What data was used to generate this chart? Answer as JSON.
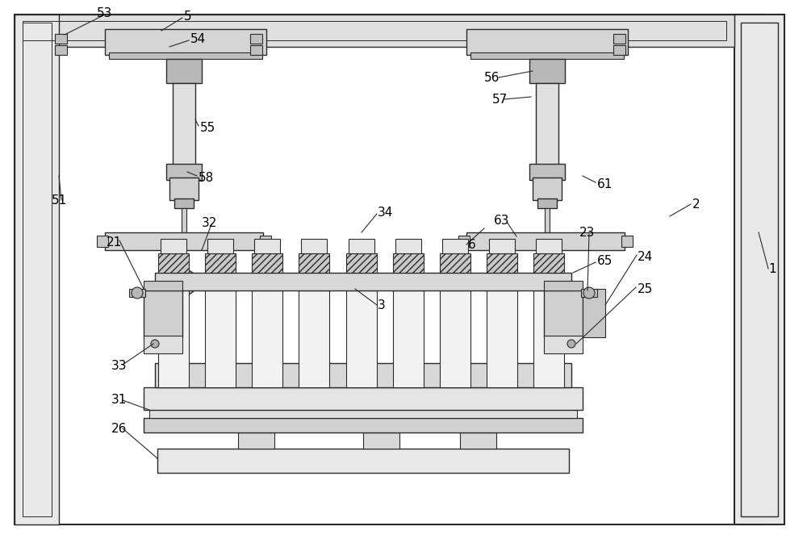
{
  "fig_width": 10.0,
  "fig_height": 6.68,
  "dpi": 100,
  "bg_color": "#ffffff",
  "lc": "#2a2a2a",
  "fc_light": "#f0f0f0",
  "fc_mid": "#d8d8d8",
  "fc_dark": "#b0b0b0",
  "fc_white": "#ffffff"
}
